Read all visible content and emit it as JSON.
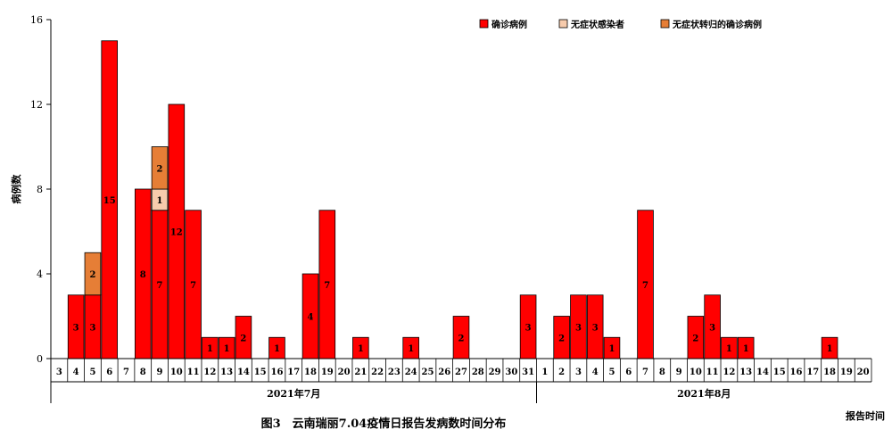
{
  "chart_data": {
    "type": "bar",
    "stacked": true,
    "title": "图3　云南瑞丽7.04疫情日报告发病数时间分布",
    "ylabel": "病例数",
    "xlabel": "报告时间",
    "ylim": [
      0,
      16
    ],
    "yticks": [
      0,
      4,
      8,
      12,
      16
    ],
    "months": [
      {
        "label": "2021年7月",
        "days": [
          "3",
          "4",
          "5",
          "6",
          "7",
          "8",
          "9",
          "10",
          "11",
          "12",
          "13",
          "14",
          "15",
          "16",
          "17",
          "18",
          "19",
          "20",
          "21",
          "22",
          "23",
          "24",
          "25",
          "26",
          "27",
          "28",
          "29",
          "30",
          "31"
        ]
      },
      {
        "label": "2021年8月",
        "days": [
          "1",
          "2",
          "3",
          "4",
          "5",
          "6",
          "7",
          "8",
          "9",
          "10",
          "11",
          "12",
          "13",
          "14",
          "15",
          "16",
          "17",
          "18",
          "19",
          "20"
        ]
      }
    ],
    "series": [
      {
        "name": "确诊病例",
        "color": "#ff0000",
        "values": [
          0,
          3,
          3,
          15,
          0,
          8,
          7,
          12,
          7,
          1,
          1,
          2,
          0,
          1,
          0,
          4,
          7,
          0,
          1,
          0,
          0,
          1,
          0,
          0,
          2,
          0,
          0,
          0,
          3,
          0,
          2,
          3,
          3,
          1,
          0,
          7,
          0,
          0,
          2,
          3,
          1,
          1,
          0,
          0,
          0,
          0,
          1,
          0,
          0
        ]
      },
      {
        "name": "无症状感染者",
        "color": "#f7cbac",
        "values": [
          0,
          0,
          0,
          0,
          0,
          0,
          1,
          0,
          0,
          0,
          0,
          0,
          0,
          0,
          0,
          0,
          0,
          0,
          0,
          0,
          0,
          0,
          0,
          0,
          0,
          0,
          0,
          0,
          0,
          0,
          0,
          0,
          0,
          0,
          0,
          0,
          0,
          0,
          0,
          0,
          0,
          0,
          0,
          0,
          0,
          0,
          0,
          0,
          0
        ]
      },
      {
        "name": "无症状转归的确诊病例",
        "color": "#e67e36",
        "values": [
          0,
          0,
          2,
          0,
          0,
          0,
          2,
          0,
          0,
          0,
          0,
          0,
          0,
          0,
          0,
          0,
          0,
          0,
          0,
          0,
          0,
          0,
          0,
          0,
          0,
          0,
          0,
          0,
          0,
          0,
          0,
          0,
          0,
          0,
          0,
          0,
          0,
          0,
          0,
          0,
          0,
          0,
          0,
          0,
          0,
          0,
          0,
          0,
          0
        ]
      }
    ],
    "legend_position": "top-right",
    "grid": false
  }
}
